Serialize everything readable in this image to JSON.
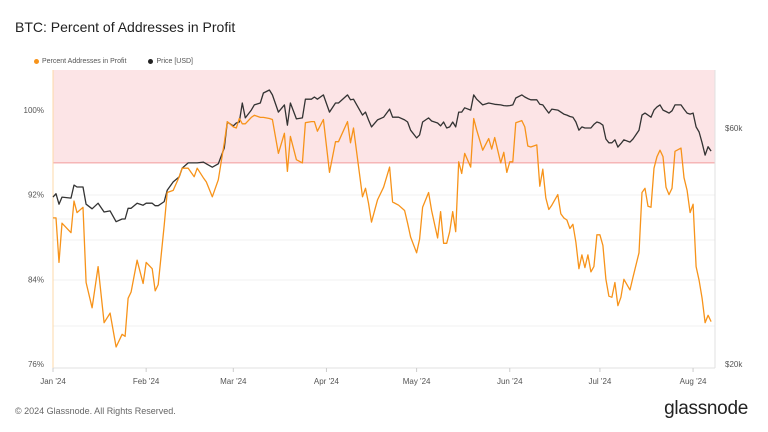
{
  "title": "BTC: Percent of Addresses in Profit",
  "footer": "© 2024 Glassnode. All Rights Reserved.",
  "logo": "glassnode",
  "colors": {
    "percent": "#f7931a",
    "price": "#333333",
    "band": "#fce4e6",
    "band_line": "#f29b9b"
  },
  "chart_data": {
    "type": "line",
    "title": "BTC: Percent of Addresses in Profit",
    "legend_position": "top-left",
    "grid": true,
    "x_ticks": [
      {
        "label": "Jan '24",
        "date": "2024-01-01"
      },
      {
        "label": "Feb '24",
        "date": "2024-02-01"
      },
      {
        "label": "Mar '24",
        "date": "2024-03-01"
      },
      {
        "label": "Apr '24",
        "date": "2024-04-01"
      },
      {
        "label": "May '24",
        "date": "2024-05-01"
      },
      {
        "label": "Jun '24",
        "date": "2024-06-01"
      },
      {
        "label": "Jul '24",
        "date": "2024-07-01"
      },
      {
        "label": "Aug '24",
        "date": "2024-08-01"
      }
    ],
    "y_left": {
      "ticks": [
        {
          "label": "100%",
          "value": 100
        },
        {
          "label": "92%",
          "value": 92
        },
        {
          "label": "84%",
          "value": 84
        },
        {
          "label": "76%",
          "value": 76
        }
      ],
      "range": [
        76,
        103.8
      ]
    },
    "y_right": {
      "scale": "log",
      "ticks": [
        {
          "label": "$60k",
          "value": 60000
        },
        {
          "label": "$20k",
          "value": 20000
        }
      ]
    },
    "highlight_band": {
      "min_pct": 95,
      "max_pct": 103.8
    },
    "series": [
      {
        "name": "Percent Addresses in Profit",
        "axis": "left",
        "unit": "%"
      },
      {
        "name": "Price [USD]",
        "axis": "right",
        "unit": "USD (k)"
      }
    ],
    "dates": [
      "2024-01-01",
      "2024-01-02",
      "2024-01-03",
      "2024-01-04",
      "2024-01-07",
      "2024-01-08",
      "2024-01-09",
      "2024-01-11",
      "2024-01-12",
      "2024-01-14",
      "2024-01-16",
      "2024-01-18",
      "2024-01-20",
      "2024-01-22",
      "2024-01-24",
      "2024-01-25",
      "2024-01-26",
      "2024-01-27",
      "2024-01-29",
      "2024-01-31",
      "2024-02-01",
      "2024-02-03",
      "2024-02-04",
      "2024-02-05",
      "2024-02-07",
      "2024-02-08",
      "2024-02-10",
      "2024-02-12",
      "2024-02-13",
      "2024-02-15",
      "2024-02-17",
      "2024-02-18",
      "2024-02-20",
      "2024-02-21",
      "2024-02-23",
      "2024-02-25",
      "2024-02-27",
      "2024-02-28",
      "2024-03-01",
      "2024-03-02",
      "2024-03-03",
      "2024-03-04",
      "2024-03-05",
      "2024-03-07",
      "2024-03-08",
      "2024-03-10",
      "2024-03-11",
      "2024-03-13",
      "2024-03-14",
      "2024-03-16",
      "2024-03-18",
      "2024-03-19",
      "2024-03-20",
      "2024-03-22",
      "2024-03-24",
      "2024-03-25",
      "2024-03-27",
      "2024-03-28",
      "2024-03-29",
      "2024-03-31",
      "2024-04-02",
      "2024-04-04",
      "2024-04-05",
      "2024-04-08",
      "2024-04-09",
      "2024-04-10",
      "2024-04-13",
      "2024-04-14",
      "2024-04-15",
      "2024-04-16",
      "2024-04-18",
      "2024-04-20",
      "2024-04-22",
      "2024-04-23",
      "2024-04-25",
      "2024-04-27",
      "2024-04-28",
      "2024-04-29",
      "2024-05-01",
      "2024-05-02",
      "2024-05-03",
      "2024-05-05",
      "2024-05-06",
      "2024-05-08",
      "2024-05-09",
      "2024-05-10",
      "2024-05-11",
      "2024-05-12",
      "2024-05-13",
      "2024-05-14",
      "2024-05-15",
      "2024-05-16",
      "2024-05-17",
      "2024-05-19",
      "2024-05-20",
      "2024-05-21",
      "2024-05-23",
      "2024-05-25",
      "2024-05-26",
      "2024-05-27",
      "2024-05-29",
      "2024-05-30",
      "2024-05-31",
      "2024-06-01",
      "2024-06-02",
      "2024-06-03",
      "2024-06-05",
      "2024-06-06",
      "2024-06-07",
      "2024-06-08",
      "2024-06-10",
      "2024-06-11",
      "2024-06-12",
      "2024-06-13",
      "2024-06-14",
      "2024-06-15",
      "2024-06-17",
      "2024-06-18",
      "2024-06-19",
      "2024-06-20",
      "2024-06-21",
      "2024-06-22",
      "2024-06-23",
      "2024-06-24",
      "2024-06-25",
      "2024-06-26",
      "2024-06-27",
      "2024-06-28",
      "2024-06-29",
      "2024-06-30",
      "2024-07-01",
      "2024-07-02",
      "2024-07-03",
      "2024-07-04",
      "2024-07-05",
      "2024-07-06",
      "2024-07-07",
      "2024-07-08",
      "2024-07-09",
      "2024-07-11",
      "2024-07-12",
      "2024-07-14",
      "2024-07-15",
      "2024-07-16",
      "2024-07-17",
      "2024-07-18",
      "2024-07-19",
      "2024-07-20",
      "2024-07-21",
      "2024-07-22",
      "2024-07-23",
      "2024-07-24",
      "2024-07-25",
      "2024-07-26",
      "2024-07-28",
      "2024-07-29",
      "2024-07-30",
      "2024-07-31",
      "2024-08-01",
      "2024-08-02",
      "2024-08-03",
      "2024-08-04",
      "2024-08-05",
      "2024-08-06",
      "2024-08-07"
    ],
    "percent": [
      89.8,
      89.8,
      85.6,
      89.3,
      88.4,
      91.4,
      90.3,
      90.8,
      83.7,
      81.3,
      85.2,
      79.9,
      80.8,
      77.6,
      78.8,
      78.6,
      82.2,
      82.8,
      85.8,
      83.6,
      85.6,
      85.0,
      82.9,
      83.5,
      89.1,
      92.2,
      92.4,
      93.7,
      94.5,
      94.5,
      93.7,
      94.5,
      93.6,
      93.2,
      91.8,
      93.4,
      96.9,
      98.9,
      98.4,
      98.3,
      99.2,
      98.7,
      98.7,
      99.3,
      99.5,
      99.3,
      99.3,
      99.2,
      99.1,
      95.9,
      97.8,
      94.2,
      97.5,
      95.3,
      95.0,
      98.8,
      98.9,
      98.9,
      98.0,
      99.1,
      94.1,
      97.0,
      97.0,
      98.9,
      96.9,
      98.3,
      91.8,
      92.6,
      91.2,
      89.4,
      91.5,
      92.7,
      94.6,
      91.3,
      91.0,
      90.5,
      89.3,
      88.0,
      86.5,
      87.8,
      90.8,
      92.2,
      90.5,
      87.9,
      90.4,
      87.4,
      87.4,
      88.5,
      90.4,
      88.5,
      95.1,
      94.0,
      95.9,
      94.6,
      99.2,
      98.1,
      96.2,
      97.3,
      96.3,
      97.4,
      95.0,
      96.0,
      94.1,
      95.1,
      95.1,
      98.8,
      99.0,
      98.4,
      96.6,
      96.5,
      96.7,
      92.8,
      94.4,
      91.7,
      90.6,
      91.0,
      92.0,
      90.2,
      89.8,
      89.6,
      88.8,
      89.2,
      87.5,
      85.0,
      86.3,
      85.1,
      86.3,
      84.7,
      85.2,
      88.2,
      88.2,
      87.2,
      84.0,
      82.4,
      82.3,
      83.7,
      81.5,
      82.3,
      84.0,
      83.0,
      84.2,
      86.5,
      92.2,
      92.6,
      90.9,
      90.8,
      94.5,
      95.6,
      96.2,
      95.6,
      92.7,
      92.0,
      92.6,
      96.1,
      96.4,
      93.6,
      92.4,
      90.3,
      91.1,
      85.2,
      83.9,
      82.2,
      79.9,
      80.6,
      80.0
    ],
    "price_k": [
      43.5,
      44.2,
      42.1,
      43.5,
      43.3,
      46.0,
      45.6,
      45.6,
      42.1,
      41.2,
      42.3,
      40.6,
      40.8,
      38.8,
      39.3,
      39.3,
      41.3,
      41.3,
      42.3,
      41.9,
      42.3,
      42.3,
      41.8,
      41.8,
      42.6,
      44.9,
      46.7,
      47.8,
      49.8,
      51.0,
      51.0,
      51.0,
      51.2,
      50.8,
      50.0,
      50.8,
      54.7,
      61.7,
      60.6,
      61.4,
      61.7,
      67.4,
      62.9,
      65.2,
      66.8,
      67.4,
      70.6,
      71.6,
      70.0,
      64.6,
      66.8,
      60.8,
      67.4,
      62.6,
      62.9,
      68.6,
      68.6,
      69.3,
      68.6,
      70.0,
      64.6,
      67.4,
      67.4,
      70.0,
      68.4,
      68.6,
      63.7,
      64.6,
      62.3,
      60.3,
      62.3,
      63.1,
      65.5,
      63.1,
      63.1,
      62.3,
      61.7,
      59.4,
      57.3,
      58.1,
      61.7,
      62.9,
      62.0,
      61.4,
      60.6,
      61.7,
      60.0,
      60.3,
      61.7,
      60.3,
      64.6,
      64.6,
      65.9,
      65.2,
      70.0,
      68.6,
      66.8,
      67.4,
      67.2,
      67.0,
      66.8,
      66.6,
      66.5,
      66.6,
      66.8,
      69.0,
      70.0,
      69.3,
      68.8,
      68.4,
      68.4,
      67.0,
      66.8,
      65.5,
      64.3,
      65.5,
      65.2,
      64.6,
      64.0,
      63.7,
      63.3,
      63.1,
      61.7,
      59.4,
      60.3,
      60.0,
      60.0,
      60.0,
      61.0,
      61.7,
      61.4,
      60.8,
      57.0,
      56.0,
      56.0,
      56.8,
      54.9,
      55.8,
      56.8,
      56.2,
      57.0,
      59.4,
      63.7,
      64.3,
      63.7,
      63.1,
      65.2,
      66.2,
      66.8,
      65.2,
      64.8,
      64.3,
      65.0,
      66.8,
      66.8,
      65.5,
      64.3,
      64.0,
      64.3,
      60.3,
      58.9,
      56.0,
      52.9,
      55.0,
      53.9
    ]
  }
}
